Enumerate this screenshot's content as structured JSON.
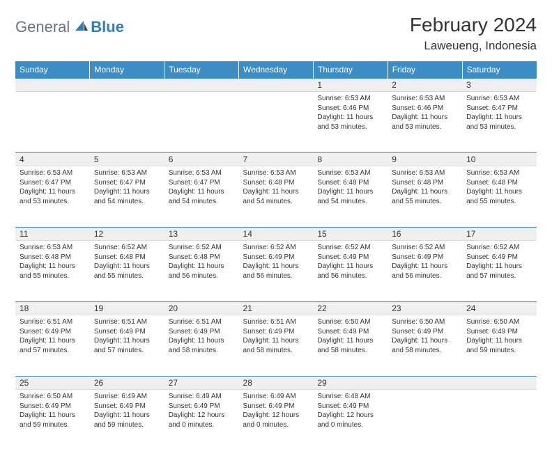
{
  "logo": {
    "general": "General",
    "blue": "Blue"
  },
  "header": {
    "month": "February 2024",
    "location": "Laweueng, Indonesia"
  },
  "colors": {
    "header_bg": "#3c8dc5",
    "header_text": "#ffffff",
    "daynum_bg": "#efefef",
    "row_border": "#3c8dc5",
    "logo_gray": "#6b7280",
    "logo_blue": "#2f7fbf",
    "text": "#333333"
  },
  "daynames": [
    "Sunday",
    "Monday",
    "Tuesday",
    "Wednesday",
    "Thursday",
    "Friday",
    "Saturday"
  ],
  "weeks": [
    [
      null,
      null,
      null,
      null,
      {
        "n": "1",
        "sr": "6:53 AM",
        "ss": "6:46 PM",
        "dl": "11 hours and 53 minutes."
      },
      {
        "n": "2",
        "sr": "6:53 AM",
        "ss": "6:46 PM",
        "dl": "11 hours and 53 minutes."
      },
      {
        "n": "3",
        "sr": "6:53 AM",
        "ss": "6:47 PM",
        "dl": "11 hours and 53 minutes."
      }
    ],
    [
      {
        "n": "4",
        "sr": "6:53 AM",
        "ss": "6:47 PM",
        "dl": "11 hours and 53 minutes."
      },
      {
        "n": "5",
        "sr": "6:53 AM",
        "ss": "6:47 PM",
        "dl": "11 hours and 54 minutes."
      },
      {
        "n": "6",
        "sr": "6:53 AM",
        "ss": "6:47 PM",
        "dl": "11 hours and 54 minutes."
      },
      {
        "n": "7",
        "sr": "6:53 AM",
        "ss": "6:48 PM",
        "dl": "11 hours and 54 minutes."
      },
      {
        "n": "8",
        "sr": "6:53 AM",
        "ss": "6:48 PM",
        "dl": "11 hours and 54 minutes."
      },
      {
        "n": "9",
        "sr": "6:53 AM",
        "ss": "6:48 PM",
        "dl": "11 hours and 55 minutes."
      },
      {
        "n": "10",
        "sr": "6:53 AM",
        "ss": "6:48 PM",
        "dl": "11 hours and 55 minutes."
      }
    ],
    [
      {
        "n": "11",
        "sr": "6:53 AM",
        "ss": "6:48 PM",
        "dl": "11 hours and 55 minutes."
      },
      {
        "n": "12",
        "sr": "6:52 AM",
        "ss": "6:48 PM",
        "dl": "11 hours and 55 minutes."
      },
      {
        "n": "13",
        "sr": "6:52 AM",
        "ss": "6:48 PM",
        "dl": "11 hours and 56 minutes."
      },
      {
        "n": "14",
        "sr": "6:52 AM",
        "ss": "6:49 PM",
        "dl": "11 hours and 56 minutes."
      },
      {
        "n": "15",
        "sr": "6:52 AM",
        "ss": "6:49 PM",
        "dl": "11 hours and 56 minutes."
      },
      {
        "n": "16",
        "sr": "6:52 AM",
        "ss": "6:49 PM",
        "dl": "11 hours and 56 minutes."
      },
      {
        "n": "17",
        "sr": "6:52 AM",
        "ss": "6:49 PM",
        "dl": "11 hours and 57 minutes."
      }
    ],
    [
      {
        "n": "18",
        "sr": "6:51 AM",
        "ss": "6:49 PM",
        "dl": "11 hours and 57 minutes."
      },
      {
        "n": "19",
        "sr": "6:51 AM",
        "ss": "6:49 PM",
        "dl": "11 hours and 57 minutes."
      },
      {
        "n": "20",
        "sr": "6:51 AM",
        "ss": "6:49 PM",
        "dl": "11 hours and 58 minutes."
      },
      {
        "n": "21",
        "sr": "6:51 AM",
        "ss": "6:49 PM",
        "dl": "11 hours and 58 minutes."
      },
      {
        "n": "22",
        "sr": "6:50 AM",
        "ss": "6:49 PM",
        "dl": "11 hours and 58 minutes."
      },
      {
        "n": "23",
        "sr": "6:50 AM",
        "ss": "6:49 PM",
        "dl": "11 hours and 58 minutes."
      },
      {
        "n": "24",
        "sr": "6:50 AM",
        "ss": "6:49 PM",
        "dl": "11 hours and 59 minutes."
      }
    ],
    [
      {
        "n": "25",
        "sr": "6:50 AM",
        "ss": "6:49 PM",
        "dl": "11 hours and 59 minutes."
      },
      {
        "n": "26",
        "sr": "6:49 AM",
        "ss": "6:49 PM",
        "dl": "11 hours and 59 minutes."
      },
      {
        "n": "27",
        "sr": "6:49 AM",
        "ss": "6:49 PM",
        "dl": "12 hours and 0 minutes."
      },
      {
        "n": "28",
        "sr": "6:49 AM",
        "ss": "6:49 PM",
        "dl": "12 hours and 0 minutes."
      },
      {
        "n": "29",
        "sr": "6:48 AM",
        "ss": "6:49 PM",
        "dl": "12 hours and 0 minutes."
      },
      null,
      null
    ]
  ],
  "labels": {
    "sunrise": "Sunrise:",
    "sunset": "Sunset:",
    "daylight": "Daylight:"
  }
}
